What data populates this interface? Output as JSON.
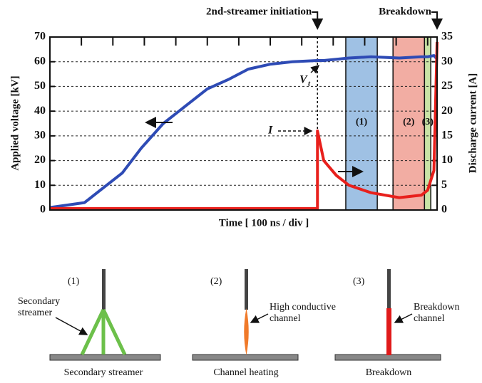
{
  "chart_data": {
    "type": "line",
    "x_label": "Time [ 100 ns / div ]",
    "y_label": "Applied voltage [kV]",
    "y2_label": "Discharge current [A]",
    "x": [
      0,
      1.1,
      1.6,
      2.3,
      2.9,
      3.6,
      4.3,
      5.0,
      5.7,
      6.3,
      7.0,
      7.7,
      8.5,
      8.5,
      8.7,
      9.1,
      9.5,
      10.2,
      11.1,
      11.8,
      12.0,
      12.2,
      12.3
    ],
    "series": [
      {
        "name": "V",
        "color": "#2e4bb5",
        "values": [
          1,
          3,
          8,
          15,
          25,
          35,
          42,
          49,
          53,
          57,
          59,
          60,
          60.5,
          60.5,
          60.5,
          61,
          61.5,
          62,
          61.5,
          62,
          62,
          62.5,
          61
        ]
      },
      {
        "name": "I",
        "color": "#e8201c",
        "axis": "y2",
        "values": [
          0.3,
          0.3,
          0.3,
          0.3,
          0.3,
          0.3,
          0.3,
          0.3,
          0.3,
          0.3,
          0.3,
          0.3,
          0.3,
          16,
          10,
          7,
          5,
          3.5,
          2.5,
          3,
          4,
          8,
          34
        ]
      }
    ],
    "xlim": [
      0,
      12.3
    ],
    "xticks": [
      0,
      1,
      2,
      3,
      4,
      5,
      6,
      7,
      8,
      9,
      10,
      11,
      12
    ],
    "ylim": [
      0,
      70
    ],
    "yticks": [
      0,
      10,
      20,
      30,
      40,
      50,
      60,
      70
    ],
    "y2lim": [
      0,
      35
    ],
    "y2ticks": [
      0,
      5,
      10,
      15,
      20,
      25,
      30,
      35
    ],
    "grid": true,
    "regions": [
      {
        "label": "(1)",
        "start": 9.4,
        "end": 10.4,
        "color": "#9fc1e4"
      },
      {
        "label": "(2)",
        "start": 10.9,
        "end": 11.9,
        "color": "#f2ada3"
      },
      {
        "label": "(3)",
        "start": 11.9,
        "end": 12.1,
        "color": "#c9e3a6"
      }
    ],
    "annotations": [
      {
        "text": "2nd-streamer initiation",
        "x": 8.5
      },
      {
        "text": "Breakdown",
        "x": 12.3
      }
    ],
    "voltage_label": {
      "text": "V",
      "sub": "t"
    },
    "current_label": "I"
  },
  "diagram": {
    "panels": [
      {
        "number": "(1)",
        "callout": [
          "Secondary",
          "streamer"
        ],
        "caption": "Secondary streamer"
      },
      {
        "number": "(2)",
        "callout": [
          "High conductive",
          "channel"
        ],
        "caption": "Channel heating"
      },
      {
        "number": "(3)",
        "callout": [
          "Breakdown",
          "channel"
        ],
        "caption": "Breakdown"
      }
    ]
  }
}
